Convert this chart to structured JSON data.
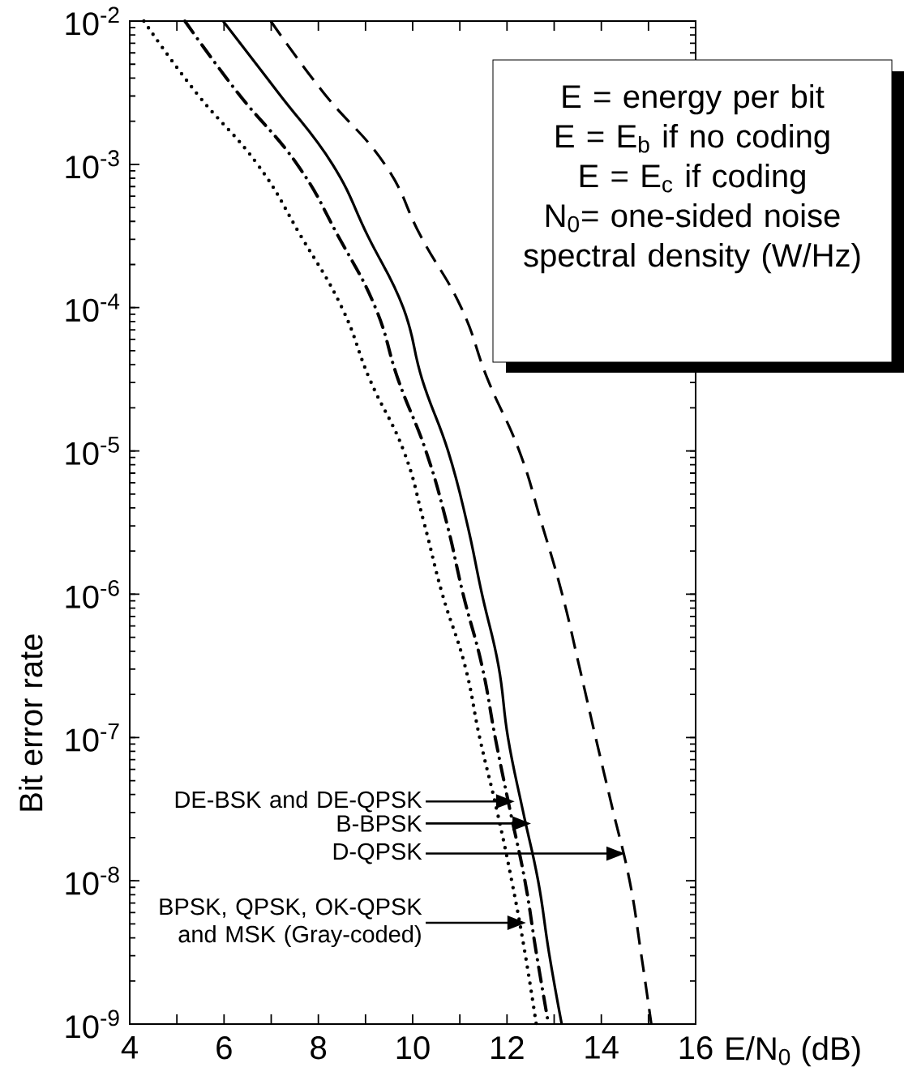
{
  "chart_data": {
    "type": "line",
    "xlabel": "E/N$_{0}$ (dB)",
    "ylabel": "Bit error rate",
    "log": "y",
    "xlim": [
      4,
      16
    ],
    "ylim": [
      1e-09,
      0.01
    ],
    "xticks": [
      4,
      {
        "value": 5,
        "label": null
      },
      6,
      {
        "value": 7,
        "label": null
      },
      8,
      {
        "value": 9,
        "label": null
      },
      10,
      {
        "value": 11,
        "label": null
      },
      12,
      {
        "value": 13,
        "label": null
      },
      14,
      {
        "value": 15,
        "label": null
      },
      16
    ],
    "yticks": [
      {
        "value": 1e-09,
        "label": "10$^{-9}$"
      },
      {
        "value": 1e-08,
        "label": "10$^{-8}$"
      },
      {
        "value": 1e-07,
        "label": "10$^{-7}$"
      },
      {
        "value": 1e-06,
        "label": "10$^{-6}$"
      },
      {
        "value": 1e-05,
        "label": "10$^{-5}$"
      },
      {
        "value": 0.0001,
        "label": "10$^{-4}$"
      },
      {
        "value": 0.001,
        "label": "10$^{-3}$"
      },
      {
        "value": 0.01,
        "label": "10$^{-2}$"
      }
    ],
    "series": [
      {
        "color": "#000000",
        "line_style": "dotted",
        "x": [
          4.3,
          5.41,
          6.71,
          7.63,
          8.5,
          9.09,
          9.81,
          10.24,
          10.63,
          11.11,
          11.42,
          11.78,
          12.1,
          12.38,
          12.62
        ],
        "values": [
          0.01,
          0.00316,
          0.001,
          0.000316,
          0.0001,
          3.16e-05,
          1e-05,
          3.16e-06,
          1e-06,
          3.16e-07,
          1e-07,
          3.16e-08,
          1e-08,
          3.16e-09,
          1e-09
        ]
      },
      {
        "color": "#000000",
        "line_style": "dashdot",
        "x": [
          5.17,
          6.29,
          7.55,
          8.42,
          9.21,
          9.69,
          10.28,
          10.72,
          11.07,
          11.47,
          11.75,
          12.06,
          12.38,
          12.62,
          12.88
        ],
        "values": [
          0.01,
          0.00316,
          0.001,
          0.000316,
          0.0001,
          3.16e-05,
          1e-05,
          3.16e-06,
          1e-06,
          3.16e-07,
          1e-07,
          3.16e-08,
          1e-08,
          3.16e-09,
          1e-09
        ]
      },
      {
        "color": "#000000",
        "line_style": "solid",
        "x": [
          5.98,
          7.15,
          8.3,
          9.05,
          9.8,
          10.2,
          10.75,
          11.15,
          11.47,
          11.82,
          12.02,
          12.33,
          12.66,
          12.89,
          13.16
        ],
        "values": [
          0.01,
          0.00316,
          0.001,
          0.000316,
          0.0001,
          3.16e-05,
          1e-05,
          3.16e-06,
          1e-06,
          3.16e-07,
          1e-07,
          3.16e-08,
          1e-08,
          3.16e-09,
          1e-09
        ]
      },
      {
        "color": "#000000",
        "line_style": "dashed",
        "x": [
          6.99,
          8.11,
          9.41,
          10.17,
          11.03,
          11.59,
          12.26,
          12.73,
          13.17,
          13.53,
          13.88,
          14.24,
          14.6,
          14.84,
          15.06
        ],
        "values": [
          0.01,
          0.00316,
          0.001,
          0.000316,
          0.0001,
          3.16e-05,
          1e-05,
          3.16e-06,
          1e-06,
          3.16e-07,
          1e-07,
          3.16e-08,
          1e-08,
          3.16e-09,
          1e-09
        ]
      }
    ],
    "annotations": [
      "DE-BSK and DE-QPSK",
      "B-BPSK",
      "D-QPSK",
      "BPSK, QPSK, OK-QPSK and MSK (Gray-coded)",
      "E = energy per bit",
      "E = E$_{b}$ if no coding",
      "E = E$_{c}$ if coding",
      "N$_{0}$= one-sided noise spectral density (W/Hz)"
    ]
  }
}
